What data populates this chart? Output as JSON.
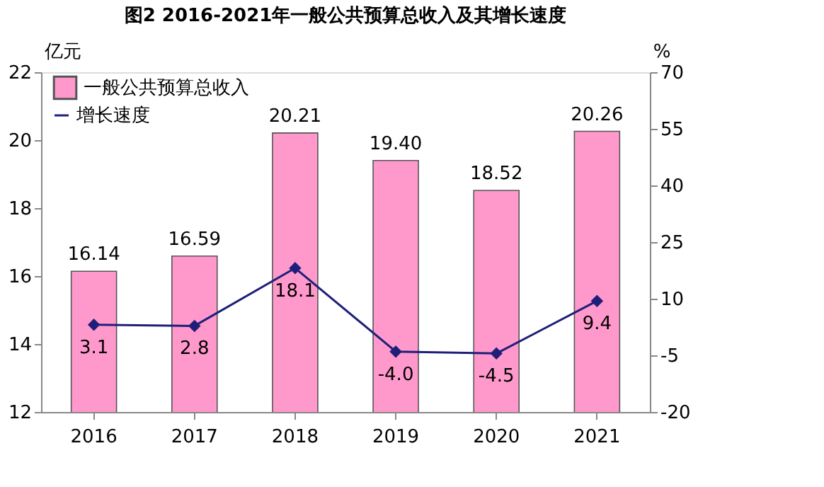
{
  "chart_data": {
    "type": "bar",
    "title": "图2  2016-2021年一般公共预算总收入及其增长速度",
    "categories": [
      "2016",
      "2017",
      "2018",
      "2019",
      "2020",
      "2021"
    ],
    "ylabel": "亿元",
    "y2label": "%",
    "ylim": [
      12,
      22
    ],
    "yticks": [
      12,
      14,
      16,
      18,
      20,
      22
    ],
    "y2lim": [
      -20,
      70
    ],
    "y2ticks": [
      -20,
      -5,
      10,
      25,
      40,
      55,
      70
    ],
    "series": [
      {
        "name": "一般公共预算总收入",
        "color": "#ff99cc",
        "values": [
          16.14,
          16.59,
          20.21,
          19.4,
          18.52,
          20.26
        ],
        "value_labels": [
          "16.14",
          "16.59",
          "20.21",
          "19.40",
          "18.52",
          "20.26"
        ]
      },
      {
        "name": "增长速度",
        "type": "line",
        "axis": "y2",
        "color": "#1f1f7a",
        "marker": "diamond",
        "values": [
          3.1,
          2.8,
          18.1,
          -4.0,
          -4.5,
          9.4
        ],
        "value_labels": [
          "3.1",
          "2.8",
          "18.1",
          "-4.0",
          "-4.5",
          "9.4"
        ]
      }
    ],
    "legend": "top left",
    "grid": false
  }
}
